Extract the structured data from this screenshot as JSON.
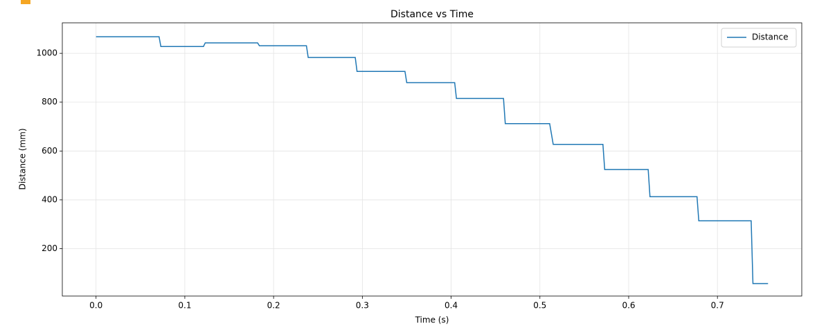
{
  "chart_data": {
    "type": "line",
    "title": "Distance vs Time",
    "xlabel": "Time (s)",
    "ylabel": "Distance (mm)",
    "x": [
      0,
      0.071,
      0.073,
      0.121,
      0.123,
      0.182,
      0.184,
      0.237,
      0.239,
      0.292,
      0.294,
      0.348,
      0.35,
      0.404,
      0.406,
      0.459,
      0.461,
      0.511,
      0.515,
      0.571,
      0.573,
      0.622,
      0.624,
      0.677,
      0.679,
      0.738,
      0.74,
      0.757
    ],
    "series": [
      {
        "name": "Distance",
        "color": "#1f77b4",
        "values": [
          1068,
          1068,
          1028,
          1028,
          1043,
          1043,
          1031,
          1031,
          983,
          983,
          926,
          926,
          880,
          880,
          815,
          815,
          712,
          712,
          627,
          627,
          524,
          524,
          413,
          413,
          314,
          314,
          57,
          57
        ]
      }
    ],
    "xlim": [
      -0.038,
      0.795
    ],
    "xticks": [
      {
        "value": 0,
        "label": "0.0"
      },
      0.1,
      0.2,
      0.3,
      0.4,
      0.5,
      0.6,
      0.7
    ],
    "ylim": [
      6,
      1125
    ],
    "yticks": [
      200,
      400,
      600,
      800,
      1000
    ],
    "grid": true,
    "legend": "upper right"
  }
}
